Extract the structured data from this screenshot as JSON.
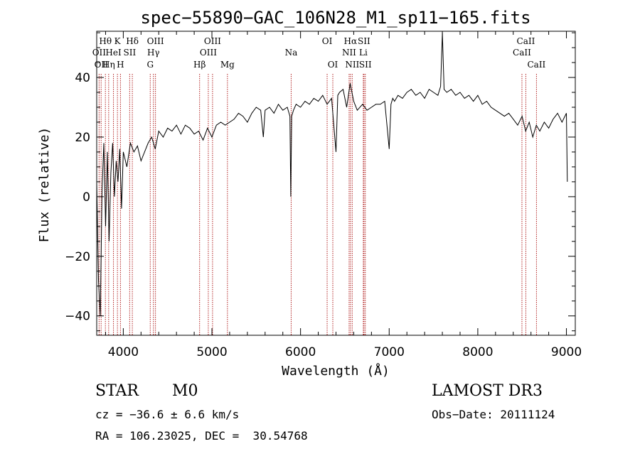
{
  "chart_data": {
    "type": "line",
    "title": "spec−55890−GAC_106N28_M1_sp11−165.fits",
    "xlabel": "Wavelength (Å)",
    "ylabel": "Flux (relative)",
    "xlim": [
      3700,
      9100
    ],
    "ylim": [
      -46.5,
      55.5
    ],
    "xticks": [
      4000,
      5000,
      6000,
      7000,
      8000,
      9000
    ],
    "yticks": [
      -40,
      -20,
      0,
      20,
      40
    ],
    "xtick_labels": [
      "4000",
      "5000",
      "6000",
      "7000",
      "8000",
      "9000"
    ],
    "ytick_labels": [
      "−40",
      "−20",
      "0",
      "20",
      "40"
    ],
    "series": [
      {
        "name": "spectrum",
        "x": [
          3700,
          3720,
          3740,
          3760,
          3780,
          3800,
          3820,
          3840,
          3860,
          3880,
          3900,
          3920,
          3940,
          3960,
          3980,
          4000,
          4040,
          4080,
          4120,
          4160,
          4200,
          4240,
          4280,
          4320,
          4360,
          4400,
          4450,
          4500,
          4550,
          4600,
          4650,
          4700,
          4750,
          4800,
          4850,
          4900,
          4950,
          5000,
          5050,
          5100,
          5150,
          5200,
          5250,
          5300,
          5350,
          5400,
          5450,
          5500,
          5550,
          5580,
          5600,
          5650,
          5700,
          5750,
          5800,
          5850,
          5880,
          5890,
          5900,
          5920,
          5950,
          6000,
          6050,
          6100,
          6150,
          6200,
          6250,
          6300,
          6350,
          6400,
          6420,
          6440,
          6480,
          6520,
          6560,
          6600,
          6640,
          6700,
          6750,
          6800,
          6850,
          6900,
          6950,
          7000,
          7020,
          7040,
          7060,
          7100,
          7150,
          7200,
          7250,
          7300,
          7350,
          7400,
          7450,
          7500,
          7550,
          7580,
          7600,
          7620,
          7650,
          7700,
          7750,
          7800,
          7850,
          7900,
          7950,
          8000,
          8050,
          8100,
          8150,
          8200,
          8250,
          8300,
          8350,
          8400,
          8450,
          8500,
          8540,
          8580,
          8620,
          8660,
          8700,
          8750,
          8800,
          8850,
          8900,
          8950,
          9000,
          9010
        ],
        "values": [
          5,
          -28,
          -40,
          2,
          18,
          -10,
          15,
          -15,
          8,
          18,
          0,
          12,
          5,
          16,
          -4,
          15,
          10,
          18,
          15,
          17,
          12,
          15,
          18,
          20,
          16,
          22,
          20,
          23,
          22,
          24,
          21,
          24,
          23,
          21,
          22,
          19,
          23,
          20,
          24,
          25,
          24,
          25,
          26,
          28,
          27,
          25,
          28,
          30,
          29,
          20,
          29,
          30,
          28,
          31,
          29,
          30,
          27,
          0,
          27,
          29,
          31,
          30,
          32,
          31,
          33,
          32,
          34,
          31,
          33,
          15,
          34,
          35,
          36,
          30,
          38,
          32,
          29,
          31,
          29,
          30,
          31,
          31,
          32,
          16,
          31,
          33,
          32,
          34,
          33,
          35,
          36,
          34,
          35,
          33,
          36,
          35,
          34,
          37,
          55,
          36,
          35,
          36,
          34,
          35,
          33,
          34,
          32,
          34,
          31,
          32,
          30,
          29,
          28,
          27,
          28,
          26,
          24,
          27,
          22,
          25,
          20,
          24,
          22,
          25,
          23,
          26,
          28,
          25,
          28,
          5
        ]
      }
    ],
    "spectral_lines": [
      {
        "w": 3727,
        "label": "OII",
        "row": 2
      },
      {
        "w": 3750,
        "label": "OII",
        "row": 3
      },
      {
        "w": 3798,
        "label": "Hθ",
        "row": 1
      },
      {
        "w": 3835,
        "label": "Hη",
        "row": 3
      },
      {
        "w": 3889,
        "label": "HeI",
        "row": 2
      },
      {
        "w": 3934,
        "label": "K",
        "row": 1
      },
      {
        "w": 3968,
        "label": "H",
        "row": 3
      },
      {
        "w": 4072,
        "label": "SII",
        "row": 2
      },
      {
        "w": 4102,
        "label": "Hδ",
        "row": 1
      },
      {
        "w": 4304,
        "label": "G",
        "row": 3
      },
      {
        "w": 4340,
        "label": "Hγ",
        "row": 2
      },
      {
        "w": 4363,
        "label": "OIII",
        "row": 1
      },
      {
        "w": 4861,
        "label": "Hβ",
        "row": 3
      },
      {
        "w": 4959,
        "label": "OIII",
        "row": 2
      },
      {
        "w": 5007,
        "label": "OIII",
        "row": 1
      },
      {
        "w": 5175,
        "label": "Mg",
        "row": 3
      },
      {
        "w": 5894,
        "label": "Na",
        "row": 2
      },
      {
        "w": 6300,
        "label": "OI",
        "row": 1
      },
      {
        "w": 6364,
        "label": "OI",
        "row": 3
      },
      {
        "w": 6548,
        "label": "NII",
        "row": 2
      },
      {
        "w": 6563,
        "label": "Hα",
        "row": 1
      },
      {
        "w": 6583,
        "label": "NII",
        "row": 3
      },
      {
        "w": 6708,
        "label": "Li",
        "row": 2
      },
      {
        "w": 6716,
        "label": "SII",
        "row": 1
      },
      {
        "w": 6731,
        "label": "SII",
        "row": 3
      },
      {
        "w": 8498,
        "label": "CaII",
        "row": 2
      },
      {
        "w": 8542,
        "label": "CaII",
        "row": 1
      },
      {
        "w": 8662,
        "label": "CaII",
        "row": 3
      }
    ]
  },
  "info": {
    "object_class": "STAR",
    "subclass": "M0",
    "survey": "LAMOST DR3",
    "cz": "cz = −36.6 ± 6.6 km/s",
    "obs_date": "Obs−Date: 20111124",
    "coords": "RA = 106.23025, DEC =  30.54768"
  },
  "colors": {
    "line_marker": "#b22222",
    "spectrum": "#000000"
  }
}
